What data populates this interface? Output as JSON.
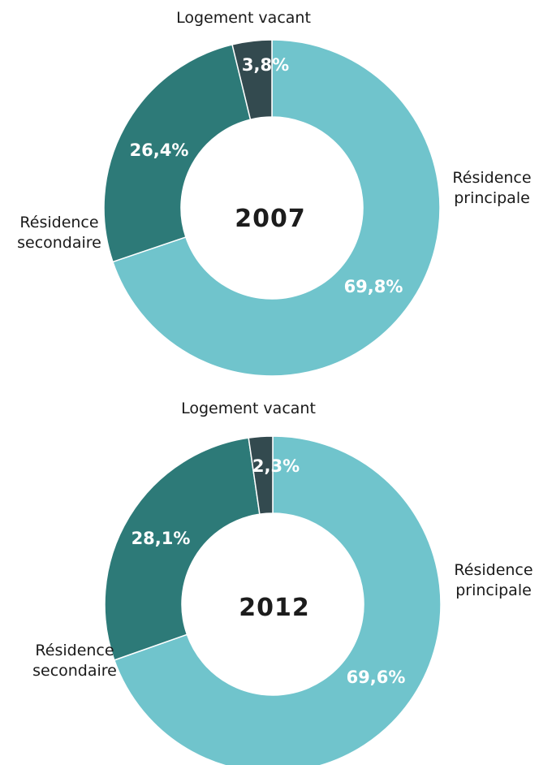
{
  "colors": {
    "principale": "#70c4cc",
    "secondaire": "#2d7a78",
    "vacant": "#334a4f",
    "separator": "#ffffff"
  },
  "chart_data": [
    {
      "type": "pie",
      "title": "2007",
      "categories": [
        "Résidence principale",
        "Résidence secondaire",
        "Logement vacant"
      ],
      "values": [
        69.8,
        26.4,
        3.8
      ],
      "value_labels": [
        "69,8%",
        "26,4%",
        "3,8%"
      ],
      "unit": "%",
      "category_labels": {
        "principale": [
          "Résidence",
          "principale"
        ],
        "secondaire": [
          "Résidence",
          "secondaire"
        ],
        "vacant": [
          "Logement vacant"
        ]
      }
    },
    {
      "type": "pie",
      "title": "2012",
      "categories": [
        "Résidence principale",
        "Résidence secondaire",
        "Logement vacant"
      ],
      "values": [
        69.6,
        28.1,
        2.3
      ],
      "value_labels": [
        "69,6%",
        "28,1%",
        "2,3%"
      ],
      "unit": "%",
      "category_labels": {
        "principale": [
          "Résidence",
          "principale"
        ],
        "secondaire": [
          "Résidence",
          "secondaire"
        ],
        "vacant": [
          "Logement vacant"
        ]
      }
    }
  ]
}
